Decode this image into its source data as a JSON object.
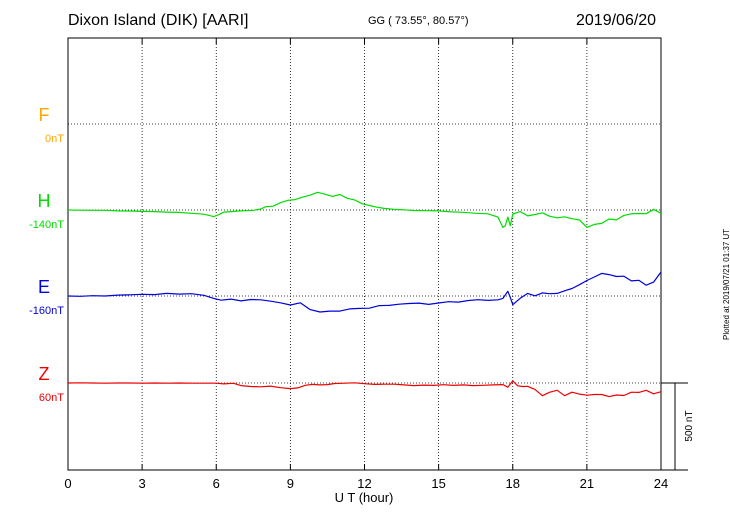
{
  "header": {
    "title": "Dixon Island (DIK)  [AARI]",
    "subtitle": "GG ( 73.55°,  80.57°)",
    "date": "2019/06/20"
  },
  "footer": {
    "plotted": "Plotted at 2019/07/21 01:37 UT"
  },
  "chart_data": {
    "type": "line",
    "title": "Dixon Island (DIK)  [AARI]",
    "xlabel": "U T (hour)",
    "xlim": [
      0,
      24
    ],
    "xticks": [
      "0",
      "3",
      "6",
      "9",
      "12",
      "15",
      "18",
      "21",
      "24"
    ],
    "grid": true,
    "scale_bar": {
      "label": "500 nT",
      "value": 500
    },
    "series": [
      {
        "name": "F",
        "baseline_label": "0nT",
        "color": "#ffa500",
        "offset": 0,
        "x": [],
        "y": []
      },
      {
        "name": "H",
        "baseline_label": "-140nT",
        "color": "#00dd00",
        "offset": -140,
        "x": [
          0,
          0.5,
          1,
          1.5,
          2,
          2.5,
          3,
          3.5,
          4,
          4.5,
          5,
          5.5,
          5.9,
          6.1,
          6.3,
          6.6,
          6.9,
          7.2,
          7.5,
          7.8,
          8.0,
          8.3,
          8.6,
          8.9,
          9.2,
          9.5,
          9.8,
          10.1,
          10.4,
          10.7,
          11.0,
          11.3,
          11.6,
          11.9,
          12.2,
          12.5,
          12.8,
          13.2,
          13.6,
          14.0,
          14.5,
          15.0,
          15.5,
          16.0,
          16.5,
          17.0,
          17.4,
          17.6,
          17.7,
          17.8,
          17.9,
          18.0,
          18.3,
          18.6,
          18.9,
          19.2,
          19.5,
          19.8,
          20.1,
          20.4,
          20.7,
          21.0,
          21.3,
          21.6,
          21.9,
          22.2,
          22.5,
          22.8,
          23.1,
          23.4,
          23.7,
          24.0
        ],
        "y": [
          -140,
          -141,
          -142,
          -142,
          -145,
          -146,
          -148,
          -149,
          -152,
          -154,
          -159,
          -164,
          -178,
          -167,
          -152,
          -149,
          -146,
          -144,
          -142,
          -134,
          -121,
          -118,
          -98,
          -84,
          -80,
          -66,
          -55,
          -38,
          -49,
          -62,
          -51,
          -73,
          -82,
          -104,
          -114,
          -124,
          -131,
          -136,
          -139,
          -143,
          -144,
          -145,
          -151,
          -153,
          -159,
          -162,
          -181,
          -240,
          -230,
          -181,
          -230,
          -163,
          -149,
          -174,
          -166,
          -156,
          -176,
          -185,
          -179,
          -190,
          -197,
          -240,
          -223,
          -217,
          -192,
          -197,
          -171,
          -162,
          -160,
          -161,
          -136,
          -160
        ]
      },
      {
        "name": "E",
        "baseline_label": "-160nT",
        "color": "#0000dd",
        "offset": -160,
        "x": [
          0,
          0.5,
          1,
          1.5,
          2,
          2.5,
          3,
          3.5,
          4,
          4.5,
          5,
          5.5,
          5.9,
          6.2,
          6.6,
          7.0,
          7.4,
          7.8,
          8.2,
          8.6,
          9.0,
          9.4,
          9.8,
          10.2,
          10.6,
          11.0,
          11.4,
          11.8,
          12.2,
          12.6,
          13.0,
          13.4,
          13.8,
          14.2,
          14.6,
          15.0,
          15.4,
          15.8,
          16.2,
          16.6,
          17.0,
          17.4,
          17.6,
          17.8,
          17.9,
          18.0,
          18.3,
          18.6,
          18.9,
          19.2,
          19.5,
          19.8,
          20.1,
          20.4,
          20.7,
          21.0,
          21.3,
          21.6,
          21.9,
          22.2,
          22.5,
          22.8,
          23.1,
          23.4,
          23.7,
          24.0
        ],
        "y": [
          -160,
          -162,
          -158,
          -160,
          -155,
          -153,
          -150,
          -152,
          -145,
          -149,
          -147,
          -156,
          -174,
          -184,
          -178,
          -188,
          -180,
          -182,
          -190,
          -199,
          -212,
          -199,
          -238,
          -252,
          -247,
          -247,
          -234,
          -231,
          -230,
          -215,
          -214,
          -207,
          -203,
          -201,
          -208,
          -200,
          -193,
          -195,
          -186,
          -181,
          -185,
          -182,
          -174,
          -133,
          -168,
          -210,
          -173,
          -145,
          -159,
          -142,
          -147,
          -145,
          -130,
          -117,
          -95,
          -71,
          -51,
          -30,
          -37,
          -48,
          -46,
          -73,
          -70,
          -98,
          -80,
          -22
        ]
      },
      {
        "name": "Z",
        "baseline_label": "60nT",
        "color": "#ee0000",
        "offset": 60,
        "x": [
          0,
          0.5,
          1,
          1.5,
          2,
          2.5,
          3,
          3.5,
          4,
          4.5,
          5,
          5.5,
          6.0,
          6.3,
          6.7,
          7.0,
          7.4,
          7.8,
          8.2,
          8.6,
          9.0,
          9.3,
          9.6,
          9.9,
          10.2,
          10.5,
          10.8,
          11.2,
          11.6,
          12.0,
          12.4,
          12.8,
          13.2,
          13.6,
          14.0,
          14.4,
          14.8,
          15.2,
          15.6,
          16.0,
          16.4,
          16.8,
          17.2,
          17.6,
          17.8,
          18.0,
          18.2,
          18.4,
          18.6,
          18.9,
          19.2,
          19.5,
          19.8,
          20.1,
          20.4,
          20.7,
          21.0,
          21.3,
          21.6,
          21.9,
          22.2,
          22.5,
          22.8,
          23.1,
          23.4,
          23.7,
          24.0
        ],
        "y": [
          60,
          61,
          60,
          59,
          60,
          60,
          59,
          60,
          59,
          60,
          59,
          59,
          59,
          55,
          58,
          45,
          40,
          38,
          42,
          33,
          28,
          32,
          47,
          52,
          49,
          51,
          57,
          59,
          61,
          56,
          52,
          53,
          53,
          49,
          45,
          48,
          46,
          50,
          46,
          49,
          45,
          47,
          49,
          51,
          36,
          72,
          44,
          40,
          41,
          23,
          -13,
          7,
          18,
          -13,
          7,
          -4,
          -10,
          -6,
          -6,
          -18,
          -9,
          -12,
          7,
          6,
          18,
          -2,
          10
        ]
      }
    ]
  }
}
